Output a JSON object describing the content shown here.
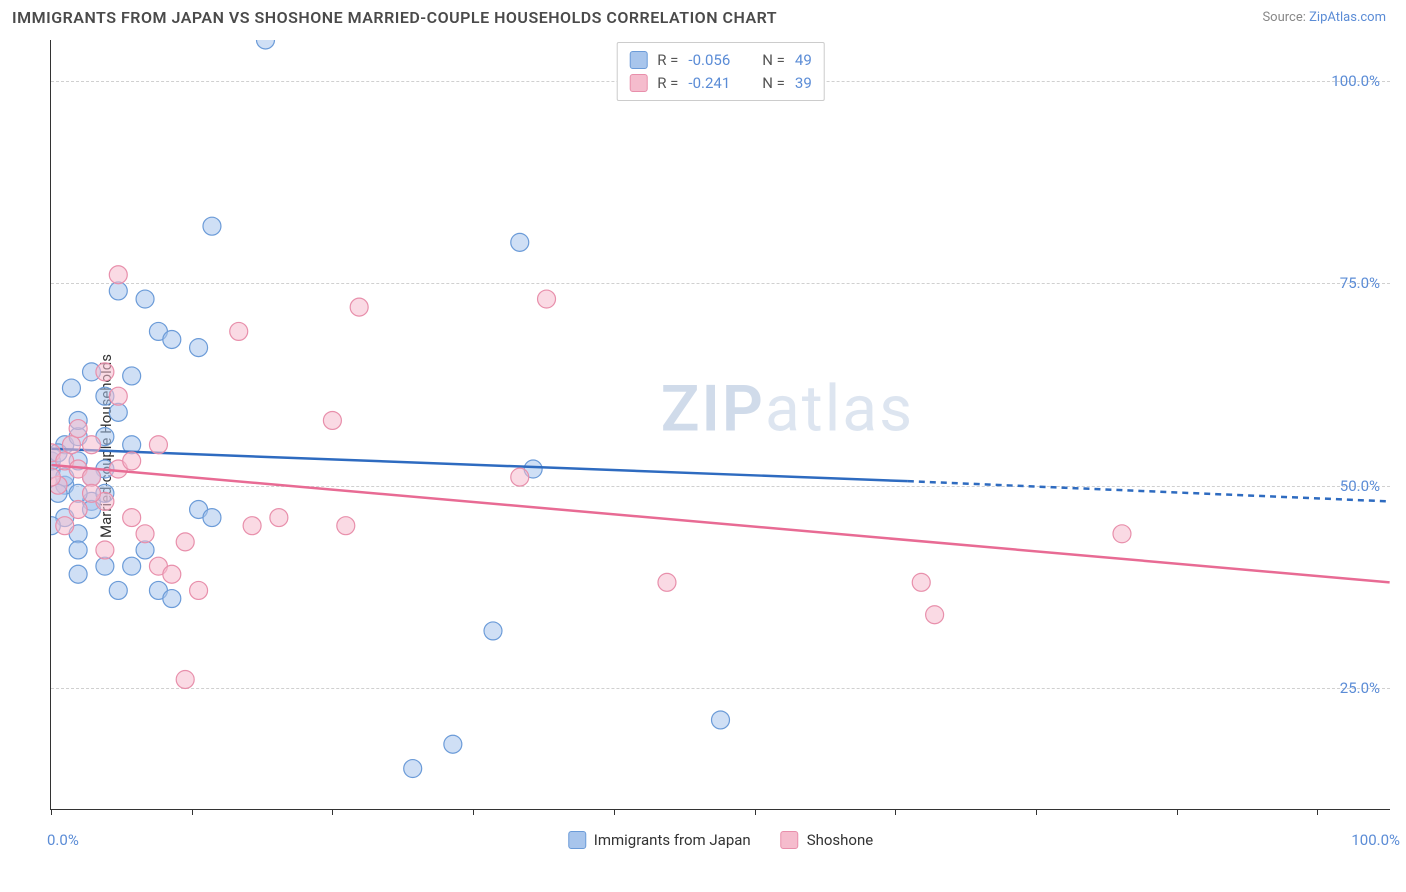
{
  "title": "IMMIGRANTS FROM JAPAN VS SHOSHONE MARRIED-COUPLE HOUSEHOLDS CORRELATION CHART",
  "source_label": "Source:",
  "source_name": "ZipAtlas.com",
  "watermark_zip": "ZIP",
  "watermark_atlas": "atlas",
  "chart": {
    "type": "scatter",
    "ylabel": "Married-couple Households",
    "xlim": [
      0,
      100
    ],
    "ylim": [
      10,
      105
    ],
    "xtick_positions": [
      0,
      10.5,
      21,
      31.5,
      42,
      52.5,
      63,
      73.5,
      84,
      94.5
    ],
    "xtick_labels": {
      "0": "0.0%",
      "100": "100.0%"
    },
    "ytick_positions": [
      25,
      50,
      75,
      100
    ],
    "ytick_labels": [
      "25.0%",
      "50.0%",
      "75.0%",
      "100.0%"
    ],
    "grid_color": "#d0d0d0",
    "background_color": "#ffffff",
    "marker_radius": 9,
    "marker_opacity": 0.55,
    "axis_color": "#333333",
    "label_fontsize": 15,
    "tick_color": "#5b8cd6",
    "series": [
      {
        "name": "Immigrants from Japan",
        "fill": "#a8c5ec",
        "stroke": "#6b9bd8",
        "line_color": "#2e6bc0",
        "line_width": 2.5,
        "R": "-0.056",
        "N": "49",
        "points": [
          [
            16,
            105
          ],
          [
            1,
            55
          ],
          [
            2,
            56
          ],
          [
            0,
            52
          ],
          [
            1,
            50
          ],
          [
            0,
            53
          ],
          [
            3,
            48
          ],
          [
            2,
            53
          ],
          [
            0.5,
            54
          ],
          [
            5,
            74
          ],
          [
            7,
            73
          ],
          [
            12,
            82
          ],
          [
            2,
            49
          ],
          [
            4,
            52
          ],
          [
            1,
            46
          ],
          [
            3,
            51
          ],
          [
            2,
            58
          ],
          [
            4,
            61
          ],
          [
            5,
            59
          ],
          [
            6,
            63.5
          ],
          [
            3,
            64
          ],
          [
            1.5,
            62
          ],
          [
            0,
            45
          ],
          [
            2,
            44
          ],
          [
            8,
            69
          ],
          [
            9,
            68
          ],
          [
            11,
            67
          ],
          [
            6,
            40
          ],
          [
            7,
            42
          ],
          [
            8,
            37
          ],
          [
            9,
            36
          ],
          [
            5,
            37
          ],
          [
            2,
            39
          ],
          [
            4,
            40
          ],
          [
            35,
            80
          ],
          [
            33,
            32
          ],
          [
            36,
            52
          ],
          [
            30,
            18
          ],
          [
            27,
            15
          ],
          [
            11,
            47
          ],
          [
            12,
            46
          ],
          [
            50,
            21
          ],
          [
            4,
            56
          ],
          [
            1,
            51
          ],
          [
            0.5,
            49
          ],
          [
            3,
            47
          ],
          [
            2,
            42
          ],
          [
            6,
            55
          ],
          [
            4,
            49
          ]
        ],
        "trend_solid": [
          [
            0,
            54.5
          ],
          [
            64,
            50.5
          ]
        ],
        "trend_dashed": [
          [
            64,
            50.5
          ],
          [
            100,
            48
          ]
        ]
      },
      {
        "name": "Shoshone",
        "fill": "#f5bccd",
        "stroke": "#e88fab",
        "line_color": "#e86b94",
        "line_width": 2.5,
        "R": "-0.241",
        "N": "39",
        "points": [
          [
            0,
            54
          ],
          [
            1,
            53
          ],
          [
            2,
            52
          ],
          [
            1.5,
            55
          ],
          [
            3,
            51
          ],
          [
            0.5,
            50
          ],
          [
            4,
            48
          ],
          [
            2,
            47
          ],
          [
            5,
            76
          ],
          [
            3,
            49
          ],
          [
            1,
            45
          ],
          [
            6,
            46
          ],
          [
            7,
            44
          ],
          [
            4,
            42
          ],
          [
            8,
            40
          ],
          [
            9,
            39
          ],
          [
            11,
            37
          ],
          [
            14,
            69
          ],
          [
            23,
            72
          ],
          [
            17,
            46
          ],
          [
            15,
            45
          ],
          [
            5,
            52
          ],
          [
            6,
            53
          ],
          [
            8,
            55
          ],
          [
            0,
            51
          ],
          [
            10,
            43
          ],
          [
            10,
            26
          ],
          [
            21,
            58
          ],
          [
            22,
            45
          ],
          [
            37,
            73
          ],
          [
            65,
            38
          ],
          [
            66,
            34
          ],
          [
            80,
            44
          ],
          [
            46,
            38
          ],
          [
            35,
            51
          ],
          [
            5,
            61
          ],
          [
            4,
            64
          ],
          [
            2,
            57
          ],
          [
            3,
            55
          ]
        ],
        "trend_solid": [
          [
            0,
            52.5
          ],
          [
            100,
            38
          ]
        ],
        "trend_dashed": null
      }
    ]
  },
  "legend_top": {
    "r_label": "R =",
    "n_label": "N ="
  }
}
